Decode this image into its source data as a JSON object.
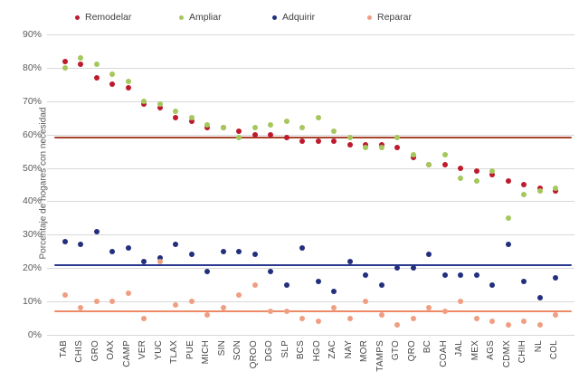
{
  "chart_data": {
    "type": "scatter",
    "title": "",
    "ylabel": "Porcentaje de hogares con necesidad",
    "xlabel": "",
    "ylim": [
      0,
      90
    ],
    "ytick_step": 10,
    "ytick_format": "percent",
    "grid": true,
    "legend_position": "top",
    "categories": [
      "TAB",
      "CHIS",
      "GRO",
      "OAX",
      "CAMP",
      "VER",
      "YUC",
      "TLAX",
      "PUE",
      "MICH",
      "SIN",
      "SON",
      "QROO",
      "DGO",
      "SLP",
      "BCS",
      "HGO",
      "ZAC",
      "NAY",
      "MOR",
      "TAMPS",
      "GTO",
      "QRO",
      "BC",
      "COAH",
      "JAL",
      "MEX",
      "AGS",
      "CDMX",
      "CHIH",
      "NL",
      "COL"
    ],
    "series": [
      {
        "name": "Remodelar",
        "color": "#bd1a2d",
        "values": [
          82,
          81,
          77,
          75,
          74,
          69,
          68,
          65,
          64,
          62,
          62,
          61,
          60,
          60,
          59,
          58,
          58,
          58,
          57,
          57,
          57,
          56,
          53,
          51,
          51,
          50,
          49,
          48,
          46,
          45,
          44,
          43
        ]
      },
      {
        "name": "Ampliar",
        "color": "#a5c75c",
        "values": [
          80,
          83,
          81,
          78,
          76,
          70,
          69,
          67,
          65,
          63,
          62,
          59,
          62,
          63,
          64,
          62,
          65,
          61,
          59,
          56,
          56,
          59,
          54,
          51,
          54,
          47,
          46,
          49,
          35,
          42,
          43,
          44
        ]
      },
      {
        "name": "Adquirir",
        "color": "#222f7d",
        "values": [
          28,
          27,
          31,
          25,
          26,
          22,
          23,
          27,
          24,
          19,
          25,
          25,
          24,
          19,
          15,
          26,
          16,
          13,
          22,
          18,
          15,
          20,
          20,
          24,
          18,
          18,
          18,
          15,
          27,
          16,
          11,
          17
        ]
      },
      {
        "name": "Reparar",
        "color": "#f09e82",
        "values": [
          12,
          8,
          10,
          10,
          12.5,
          5,
          22,
          9,
          10,
          6,
          8,
          12,
          15,
          7,
          7,
          5,
          4,
          8,
          5,
          10,
          6,
          3,
          5,
          8,
          7,
          10,
          5,
          4,
          3,
          4,
          3,
          6
        ]
      }
    ],
    "reference_lines": [
      {
        "series": "Remodelar",
        "value": 59,
        "color": "#a8432e"
      },
      {
        "series": "Adquirir",
        "value": 21,
        "color": "#2b3a8f"
      },
      {
        "series": "Reparar",
        "value": 7,
        "color": "#ed8a67"
      }
    ]
  },
  "legend": {
    "items": [
      {
        "label": "Remodelar",
        "color": "#bd1a2d"
      },
      {
        "label": "Ampliar",
        "color": "#a5c75c"
      },
      {
        "label": "Adquirir",
        "color": "#222f7d"
      },
      {
        "label": "Reparar",
        "color": "#f09e82"
      }
    ]
  },
  "y_axis": {
    "title": "Porcentaje de hogares con necesidad",
    "ticks": [
      "0%",
      "10%",
      "20%",
      "30%",
      "40%",
      "50%",
      "60%",
      "70%",
      "80%",
      "90%"
    ]
  }
}
